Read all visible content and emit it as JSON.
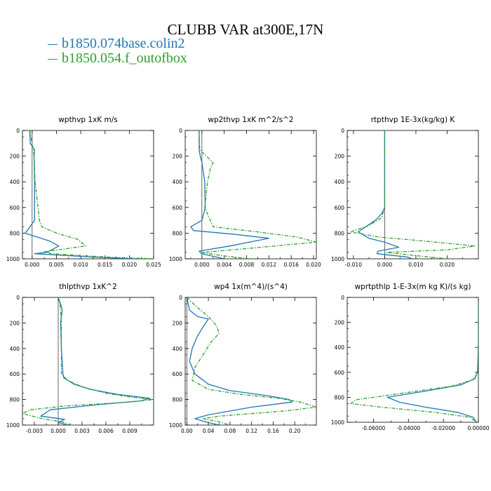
{
  "title": "CLUBB VAR at300E,17N",
  "legend": [
    {
      "label": "b1850.074base.colin2",
      "color": "#1f77b4"
    },
    {
      "label": "b1850.054.f_outofbox",
      "color": "#2ca02c"
    }
  ],
  "chart_data": [
    {
      "type": "line",
      "title": "wpthvp   1xK m/s",
      "xlim": [
        -0.002,
        0.025
      ],
      "ylim": [
        0,
        1000
      ],
      "xticks": [
        0.0,
        0.005,
        0.01,
        0.015,
        0.02,
        0.025
      ],
      "xtick_labels": [
        "0.000",
        "0.005",
        "0.010",
        "0.015",
        "0.020",
        "0.025"
      ],
      "yticks": [
        0,
        200,
        400,
        600,
        800,
        1000
      ],
      "ytick_labels": [
        "0",
        "200",
        "400",
        "600",
        "800",
        "1000"
      ],
      "series": [
        {
          "name": "b1850.074base.colin2",
          "x": [
            -0.0005,
            -0.0004,
            0.0005,
            0.0004,
            0.0005,
            0.0005,
            0.0005,
            -0.001,
            -0.0015,
            0.0035,
            0.0055,
            0.003,
            0.0005,
            0.012,
            0.021
          ],
          "y": [
            0,
            100,
            150,
            200,
            400,
            600,
            700,
            780,
            800,
            860,
            900,
            950,
            960,
            985,
            1000
          ]
        },
        {
          "name": "b1850.054.f_outofbox",
          "x": [
            -0.0005,
            0.0,
            0.0004,
            0.0006,
            0.0009,
            0.0012,
            0.0015,
            0.002,
            0.005,
            0.0095,
            0.011,
            0.0025,
            0.004,
            0.015,
            0.025
          ],
          "y": [
            0,
            100,
            200,
            400,
            500,
            600,
            700,
            750,
            800,
            850,
            900,
            945,
            960,
            985,
            1000
          ]
        }
      ]
    },
    {
      "type": "line",
      "title": "wp2thvp   1xK m^2/s^2",
      "xlim": [
        -0.003,
        0.0205
      ],
      "ylim": [
        0,
        1000
      ],
      "xticks": [
        0.0,
        0.004,
        0.008,
        0.012,
        0.016,
        0.02
      ],
      "xtick_labels": [
        "0.000",
        "0.004",
        "0.008",
        "0.012",
        "0.016",
        "0.020"
      ],
      "yticks": [
        0,
        200,
        400,
        600,
        800,
        1000
      ],
      "ytick_labels": [
        "0",
        "200",
        "400",
        "600",
        "800",
        "1000"
      ],
      "series": [
        {
          "name": "b1850.074base.colin2",
          "x": [
            -0.0005,
            -0.0005,
            -0.0003,
            0.0,
            0.0005,
            0.0006,
            0.0,
            -0.002,
            -0.0015,
            0.006,
            0.012,
            0.005,
            -0.0005,
            0.0,
            0.004
          ],
          "y": [
            0,
            150,
            200,
            250,
            400,
            600,
            700,
            750,
            780,
            810,
            840,
            900,
            940,
            960,
            1000
          ]
        },
        {
          "name": "b1850.054.f_outofbox",
          "x": [
            -0.0005,
            -0.0004,
            0.0008,
            0.002,
            0.0015,
            0.001,
            0.0005,
            0.002,
            0.01,
            0.017,
            0.0205,
            0.008,
            0.0,
            0.0035,
            0.0085
          ],
          "y": [
            0,
            150,
            200,
            250,
            300,
            400,
            600,
            750,
            790,
            830,
            870,
            920,
            950,
            975,
            1000
          ]
        }
      ]
    },
    {
      "type": "line",
      "title": "rtpthvp   1E-3x(kg/kg) K",
      "xlim": [
        -0.012,
        0.03
      ],
      "ylim": [
        0,
        1000
      ],
      "xticks": [
        -0.01,
        0.0,
        0.01,
        0.02
      ],
      "xtick_labels": [
        "-0.010",
        "0.000",
        "0.010",
        "0.020"
      ],
      "yticks": [
        0,
        200,
        400,
        600,
        800,
        1000
      ],
      "ytick_labels": [
        "0",
        "200",
        "400",
        "600",
        "800",
        "1000"
      ],
      "series": [
        {
          "name": "b1850.074base.colin2",
          "x": [
            0.0,
            0.0,
            0.0,
            0.0,
            -0.001,
            -0.003,
            -0.0085,
            -0.005,
            0.0,
            0.0045,
            -0.002,
            -0.0025,
            0.007,
            0.009
          ],
          "y": [
            0,
            200,
            400,
            600,
            650,
            700,
            790,
            840,
            870,
            910,
            940,
            960,
            985,
            1000
          ]
        },
        {
          "name": "b1850.054.f_outofbox",
          "x": [
            0.0,
            0.0,
            0.0,
            0.0,
            -0.001,
            -0.005,
            -0.011,
            -0.002,
            0.012,
            0.029,
            0.02,
            0.0005,
            0.01,
            0.02
          ],
          "y": [
            0,
            200,
            400,
            600,
            680,
            740,
            790,
            830,
            860,
            900,
            930,
            950,
            975,
            1000
          ]
        }
      ]
    },
    {
      "type": "line",
      "title": "thlpthvp   1xK^2",
      "xlim": [
        -0.0045,
        0.012
      ],
      "ylim": [
        0,
        1000
      ],
      "xticks": [
        -0.003,
        0.0,
        0.003,
        0.006,
        0.009
      ],
      "xtick_labels": [
        "-0.003",
        "0.000",
        "0.003",
        "0.006",
        "0.009"
      ],
      "yticks": [
        0,
        200,
        400,
        600,
        800,
        1000
      ],
      "ytick_labels": [
        "0",
        "200",
        "400",
        "600",
        "800",
        "1000"
      ],
      "series": [
        {
          "name": "b1850.074base.colin2",
          "x": [
            0.0,
            0.0003,
            0.0005,
            0.0003,
            0.0004,
            0.0006,
            0.0007,
            0.002,
            0.004,
            0.0075,
            0.0115,
            0.0105,
            0.005,
            -0.001,
            -0.0022,
            0.0008,
            0.0,
            0.0012
          ],
          "y": [
            0,
            50,
            100,
            200,
            400,
            600,
            630,
            680,
            720,
            760,
            790,
            810,
            840,
            880,
            930,
            955,
            980,
            1000
          ]
        },
        {
          "name": "b1850.054.f_outofbox",
          "x": [
            0.0,
            0.0002,
            0.0003,
            0.0004,
            0.0004,
            0.0004,
            0.0012,
            0.003,
            0.006,
            0.009,
            0.012,
            0.009,
            0.001,
            -0.0035,
            -0.0045,
            -0.002,
            0.0005,
            0.0015
          ],
          "y": [
            0,
            50,
            100,
            200,
            400,
            600,
            650,
            700,
            750,
            780,
            800,
            820,
            850,
            880,
            910,
            950,
            975,
            1000
          ]
        }
      ]
    },
    {
      "type": "line",
      "title": "wp4   1x(m^4)/(s^4)",
      "xlim": [
        -0.003,
        0.24
      ],
      "ylim": [
        0,
        1000
      ],
      "xticks": [
        0.0,
        0.04,
        0.08,
        0.12,
        0.16,
        0.2
      ],
      "xtick_labels": [
        "0.00",
        "0.04",
        "0.08",
        "0.12",
        "0.16",
        "0.20"
      ],
      "yticks": [
        0,
        200,
        400,
        600,
        800,
        1000
      ],
      "ytick_labels": [
        "0",
        "200",
        "400",
        "600",
        "800",
        "1000"
      ],
      "series": [
        {
          "name": "b1850.074base.colin2",
          "x": [
            0.0,
            0.005,
            0.02,
            0.04,
            0.035,
            0.02,
            0.01,
            0.005,
            0.015,
            0.04,
            0.08,
            0.15,
            0.19,
            0.195,
            0.12,
            0.04,
            0.015,
            0.035,
            0.06
          ],
          "y": [
            0,
            100,
            150,
            170,
            200,
            300,
            400,
            500,
            600,
            680,
            730,
            770,
            800,
            820,
            860,
            920,
            950,
            975,
            1000
          ]
        },
        {
          "name": "b1850.054.f_outofbox",
          "x": [
            0.0,
            0.02,
            0.04,
            0.055,
            0.06,
            0.045,
            0.03,
            0.015,
            0.01,
            0.04,
            0.1,
            0.17,
            0.21,
            0.24,
            0.18,
            0.06,
            0.03,
            0.06,
            0.08
          ],
          "y": [
            0,
            80,
            150,
            220,
            280,
            350,
            450,
            550,
            650,
            720,
            760,
            790,
            820,
            860,
            890,
            930,
            950,
            975,
            1000
          ]
        }
      ]
    },
    {
      "type": "line",
      "title": "wprtpthlp   1-E-3x(m kg K)/(s kg)",
      "xlim": [
        -0.075,
        0.0
      ],
      "ylim": [
        0,
        1000
      ],
      "xticks": [
        -0.06,
        -0.04,
        -0.02,
        0.0
      ],
      "xtick_labels": [
        "-0.06000",
        "-0.04000",
        "-0.02000",
        "0.00000"
      ],
      "yticks": [
        0,
        200,
        400,
        600,
        800,
        1000
      ],
      "ytick_labels": [
        "0",
        "200",
        "400",
        "600",
        "800",
        "1000"
      ],
      "series": [
        {
          "name": "b1850.074base.colin2",
          "x": [
            0.0,
            0.0,
            0.0,
            -0.0005,
            -0.002,
            -0.01,
            -0.03,
            -0.052,
            -0.045,
            -0.03,
            -0.012,
            -0.003,
            -0.001
          ],
          "y": [
            0,
            200,
            400,
            600,
            650,
            700,
            750,
            800,
            840,
            880,
            920,
            960,
            1000
          ]
        },
        {
          "name": "b1850.054.f_outofbox",
          "x": [
            0.0,
            0.0,
            0.0,
            -0.0005,
            -0.003,
            -0.015,
            -0.04,
            -0.07,
            -0.073,
            -0.055,
            -0.025,
            -0.005,
            -0.001
          ],
          "y": [
            0,
            200,
            400,
            600,
            660,
            710,
            760,
            820,
            850,
            880,
            920,
            960,
            1000
          ]
        }
      ]
    }
  ]
}
